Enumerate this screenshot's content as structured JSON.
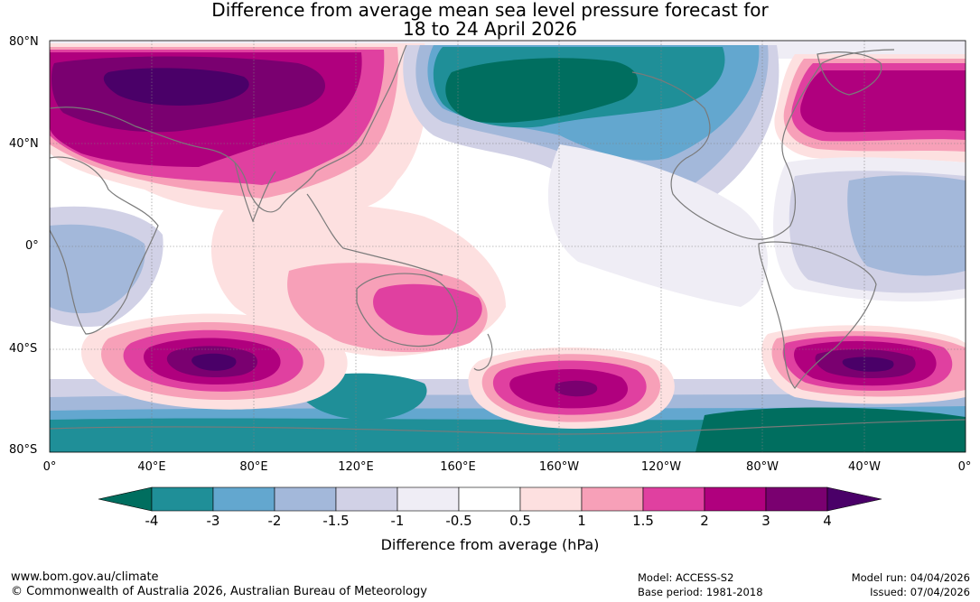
{
  "title": {
    "line1": "Difference from average mean sea level pressure forecast for",
    "line2": "18 to 24 April 2026"
  },
  "map": {
    "lat_labels": [
      "80°N",
      "40°N",
      "0°",
      "40°S",
      "80°S"
    ],
    "lon_labels": [
      "0°",
      "40°E",
      "80°E",
      "120°E",
      "160°E",
      "160°W",
      "120°W",
      "80°W",
      "40°W",
      "0°"
    ]
  },
  "colorbar": {
    "ticks": [
      "-4",
      "-3",
      "-2",
      "-1.5",
      "-1",
      "-0.5",
      "0.5",
      "1",
      "1.5",
      "2",
      "3",
      "4"
    ],
    "colors": [
      "#006e5f",
      "#1f8f98",
      "#63a7cf",
      "#a3b8da",
      "#d1d1e6",
      "#efedf5",
      "#ffffff",
      "#fde0e0",
      "#f7a0b8",
      "#e040a0",
      "#b0007e",
      "#7a0070",
      "#4a0068"
    ],
    "label": "Difference from average (hPa)"
  },
  "footer": {
    "website": "www.bom.gov.au/climate",
    "copyright": "© Commonwealth of Australia 2026, Australian Bureau of Meteorology",
    "model": "Model: ACCESS-S2",
    "base_period": "Base period: 1981-2018",
    "model_run": "Model run: 04/04/2026",
    "issued": "Issued: 07/04/2026"
  }
}
